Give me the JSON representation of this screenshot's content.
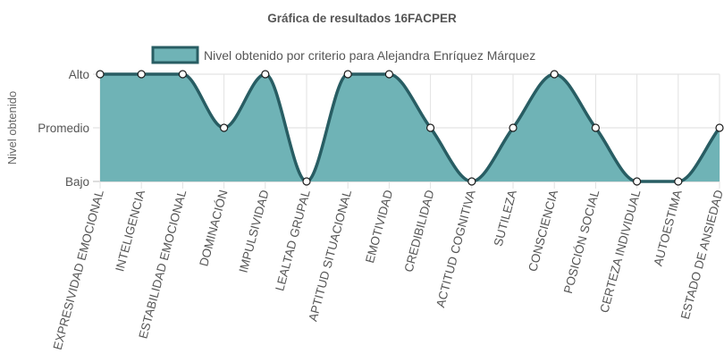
{
  "chart_data": {
    "type": "area",
    "title": "Gráfica de resultados 16FACPER",
    "ylabel": "Nivel obtenido",
    "xlabel": "",
    "y_levels": [
      "Bajo",
      "Promedio",
      "Alto"
    ],
    "ylim": [
      0,
      2
    ],
    "categories": [
      "EXPRESIVIDAD EMOCIONAL",
      "INTELIGENCIA",
      "ESTABILIDAD EMOCIONAL",
      "DOMINACIÓN",
      "IMPULSIVIDAD",
      "LEALTAD GRUPAL",
      "APTITUD SITUACIONAL",
      "EMOTIVIDAD",
      "CREDIBILIDAD",
      "ACTITUD COGNITIVA",
      "SUTILEZA",
      "CONSCIENCIA",
      "POSICIÓN SOCIAL",
      "CERTEZA INDIVIDUAL",
      "AUTOESTIMA",
      "ESTADO DE ANSIEDAD"
    ],
    "series": [
      {
        "name": "Nivel obtenido por criterio para Alejandra Enríquez Márquez",
        "values": [
          2,
          2,
          2,
          1,
          2,
          0,
          2,
          2,
          1,
          0,
          1,
          2,
          1,
          0,
          0,
          1
        ],
        "fill": "#6fb3b6",
        "stroke": "#285d63"
      }
    ],
    "grid": true,
    "legend": "top"
  }
}
